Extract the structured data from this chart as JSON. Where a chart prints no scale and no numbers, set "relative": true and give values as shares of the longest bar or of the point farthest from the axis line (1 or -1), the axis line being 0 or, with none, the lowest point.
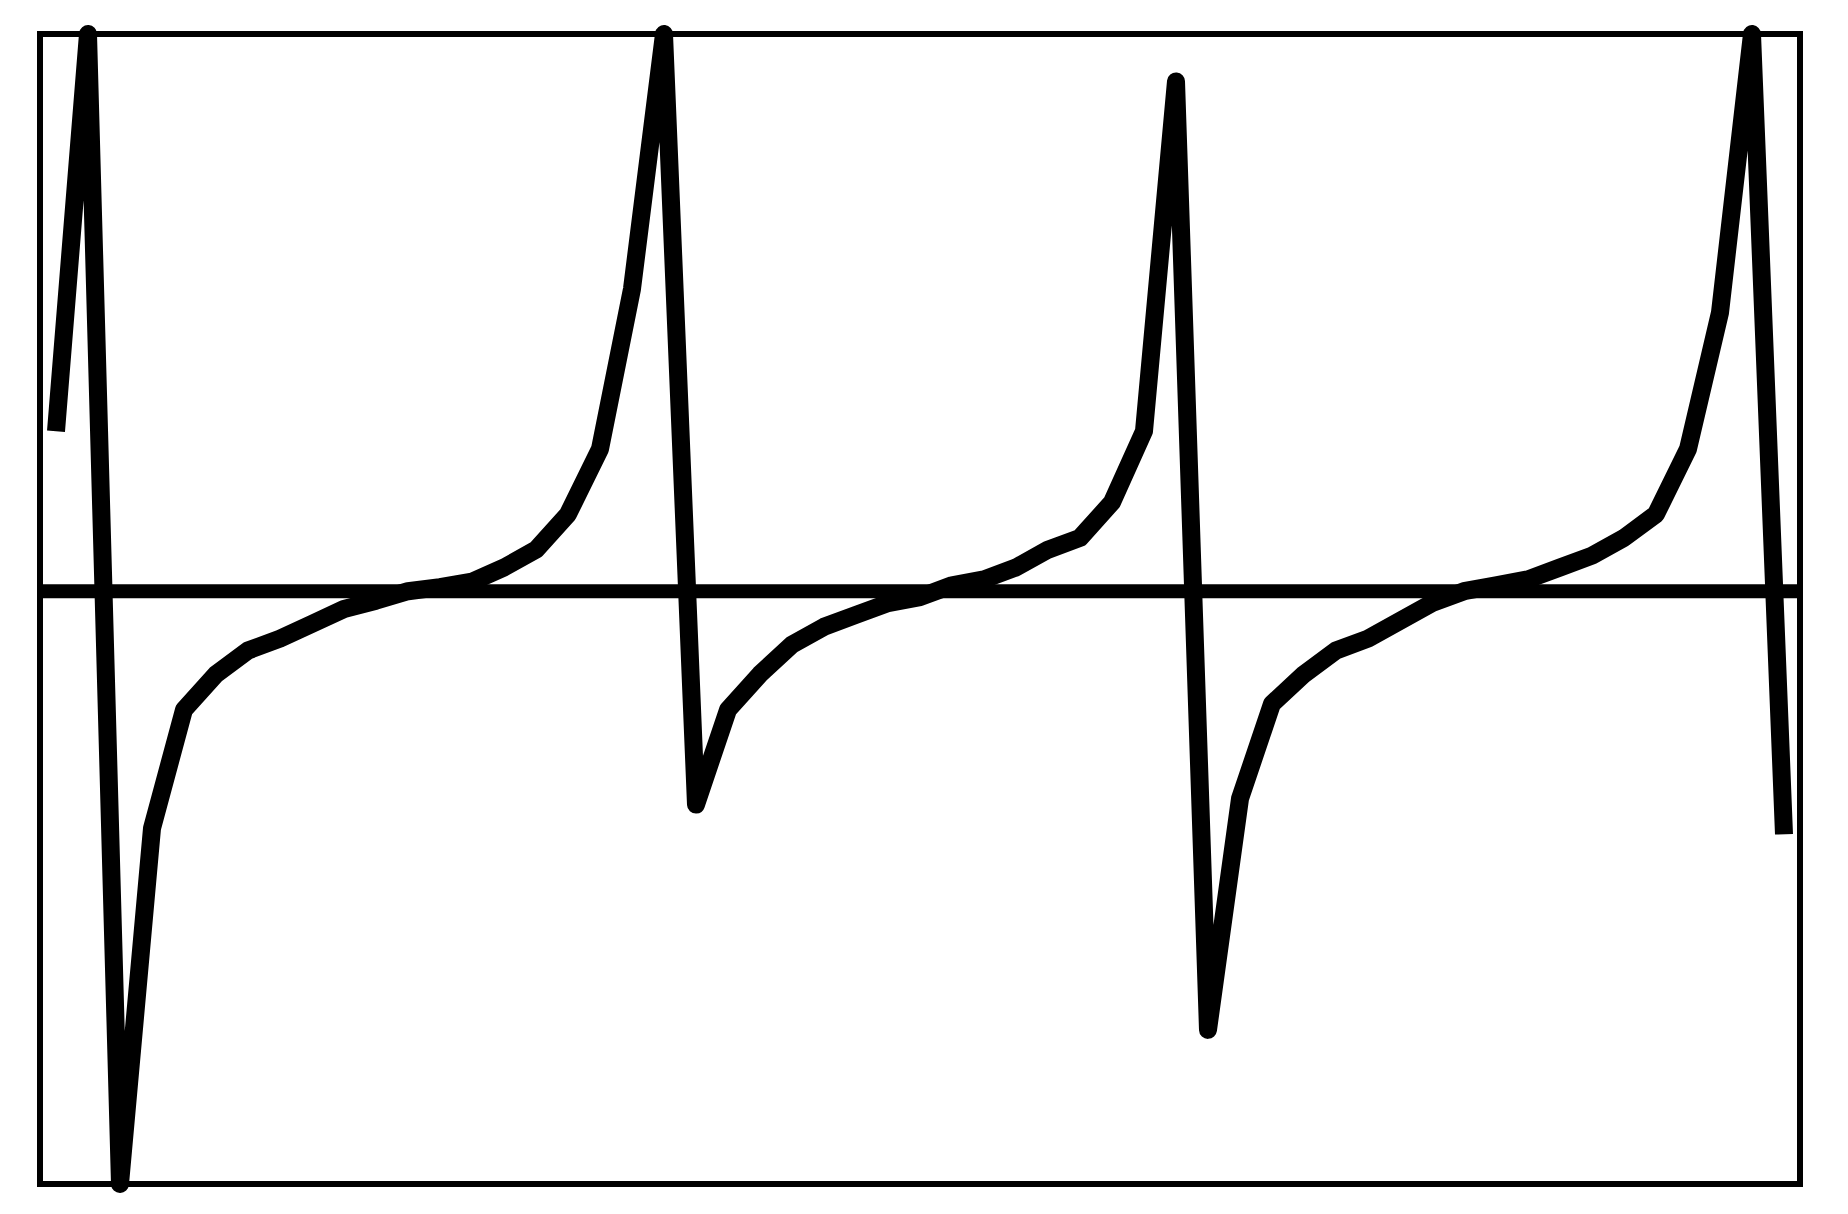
{
  "chart_data": {
    "type": "line",
    "relative": true,
    "color": "#000000",
    "categories": [
      null,
      null,
      null,
      null,
      null,
      null,
      null,
      null,
      null,
      null,
      null,
      null,
      null,
      null,
      null,
      null,
      null,
      null,
      null,
      null,
      null,
      null,
      null,
      null,
      null,
      null,
      null,
      null,
      null,
      null,
      null,
      null,
      null,
      null,
      null,
      null,
      null,
      null,
      null,
      null,
      null,
      null,
      null,
      null,
      null,
      null,
      null,
      null,
      null,
      null,
      null,
      null,
      null,
      null,
      null
    ],
    "values": [
      0.27,
      0.94,
      -1,
      -0.4,
      -0.2,
      -0.14,
      -0.1,
      -0.08,
      -0.055,
      -0.03,
      -0.016,
      0,
      0.007,
      0.016,
      0.04,
      0.07,
      0.13,
      0.24,
      0.51,
      0.94,
      -0.36,
      -0.2,
      -0.14,
      -0.09,
      -0.06,
      -0.04,
      -0.02,
      -0.01,
      0.01,
      0.02,
      0.04,
      0.07,
      0.09,
      0.15,
      0.27,
      0.86,
      -0.74,
      -0.35,
      -0.19,
      -0.14,
      -0.1,
      -0.08,
      -0.05,
      -0.02,
      0,
      0.01,
      0.02,
      0.04,
      0.06,
      0.09,
      0.13,
      0.24,
      0.47,
      0.94,
      -0.41
    ],
    "grid": false
  }
}
